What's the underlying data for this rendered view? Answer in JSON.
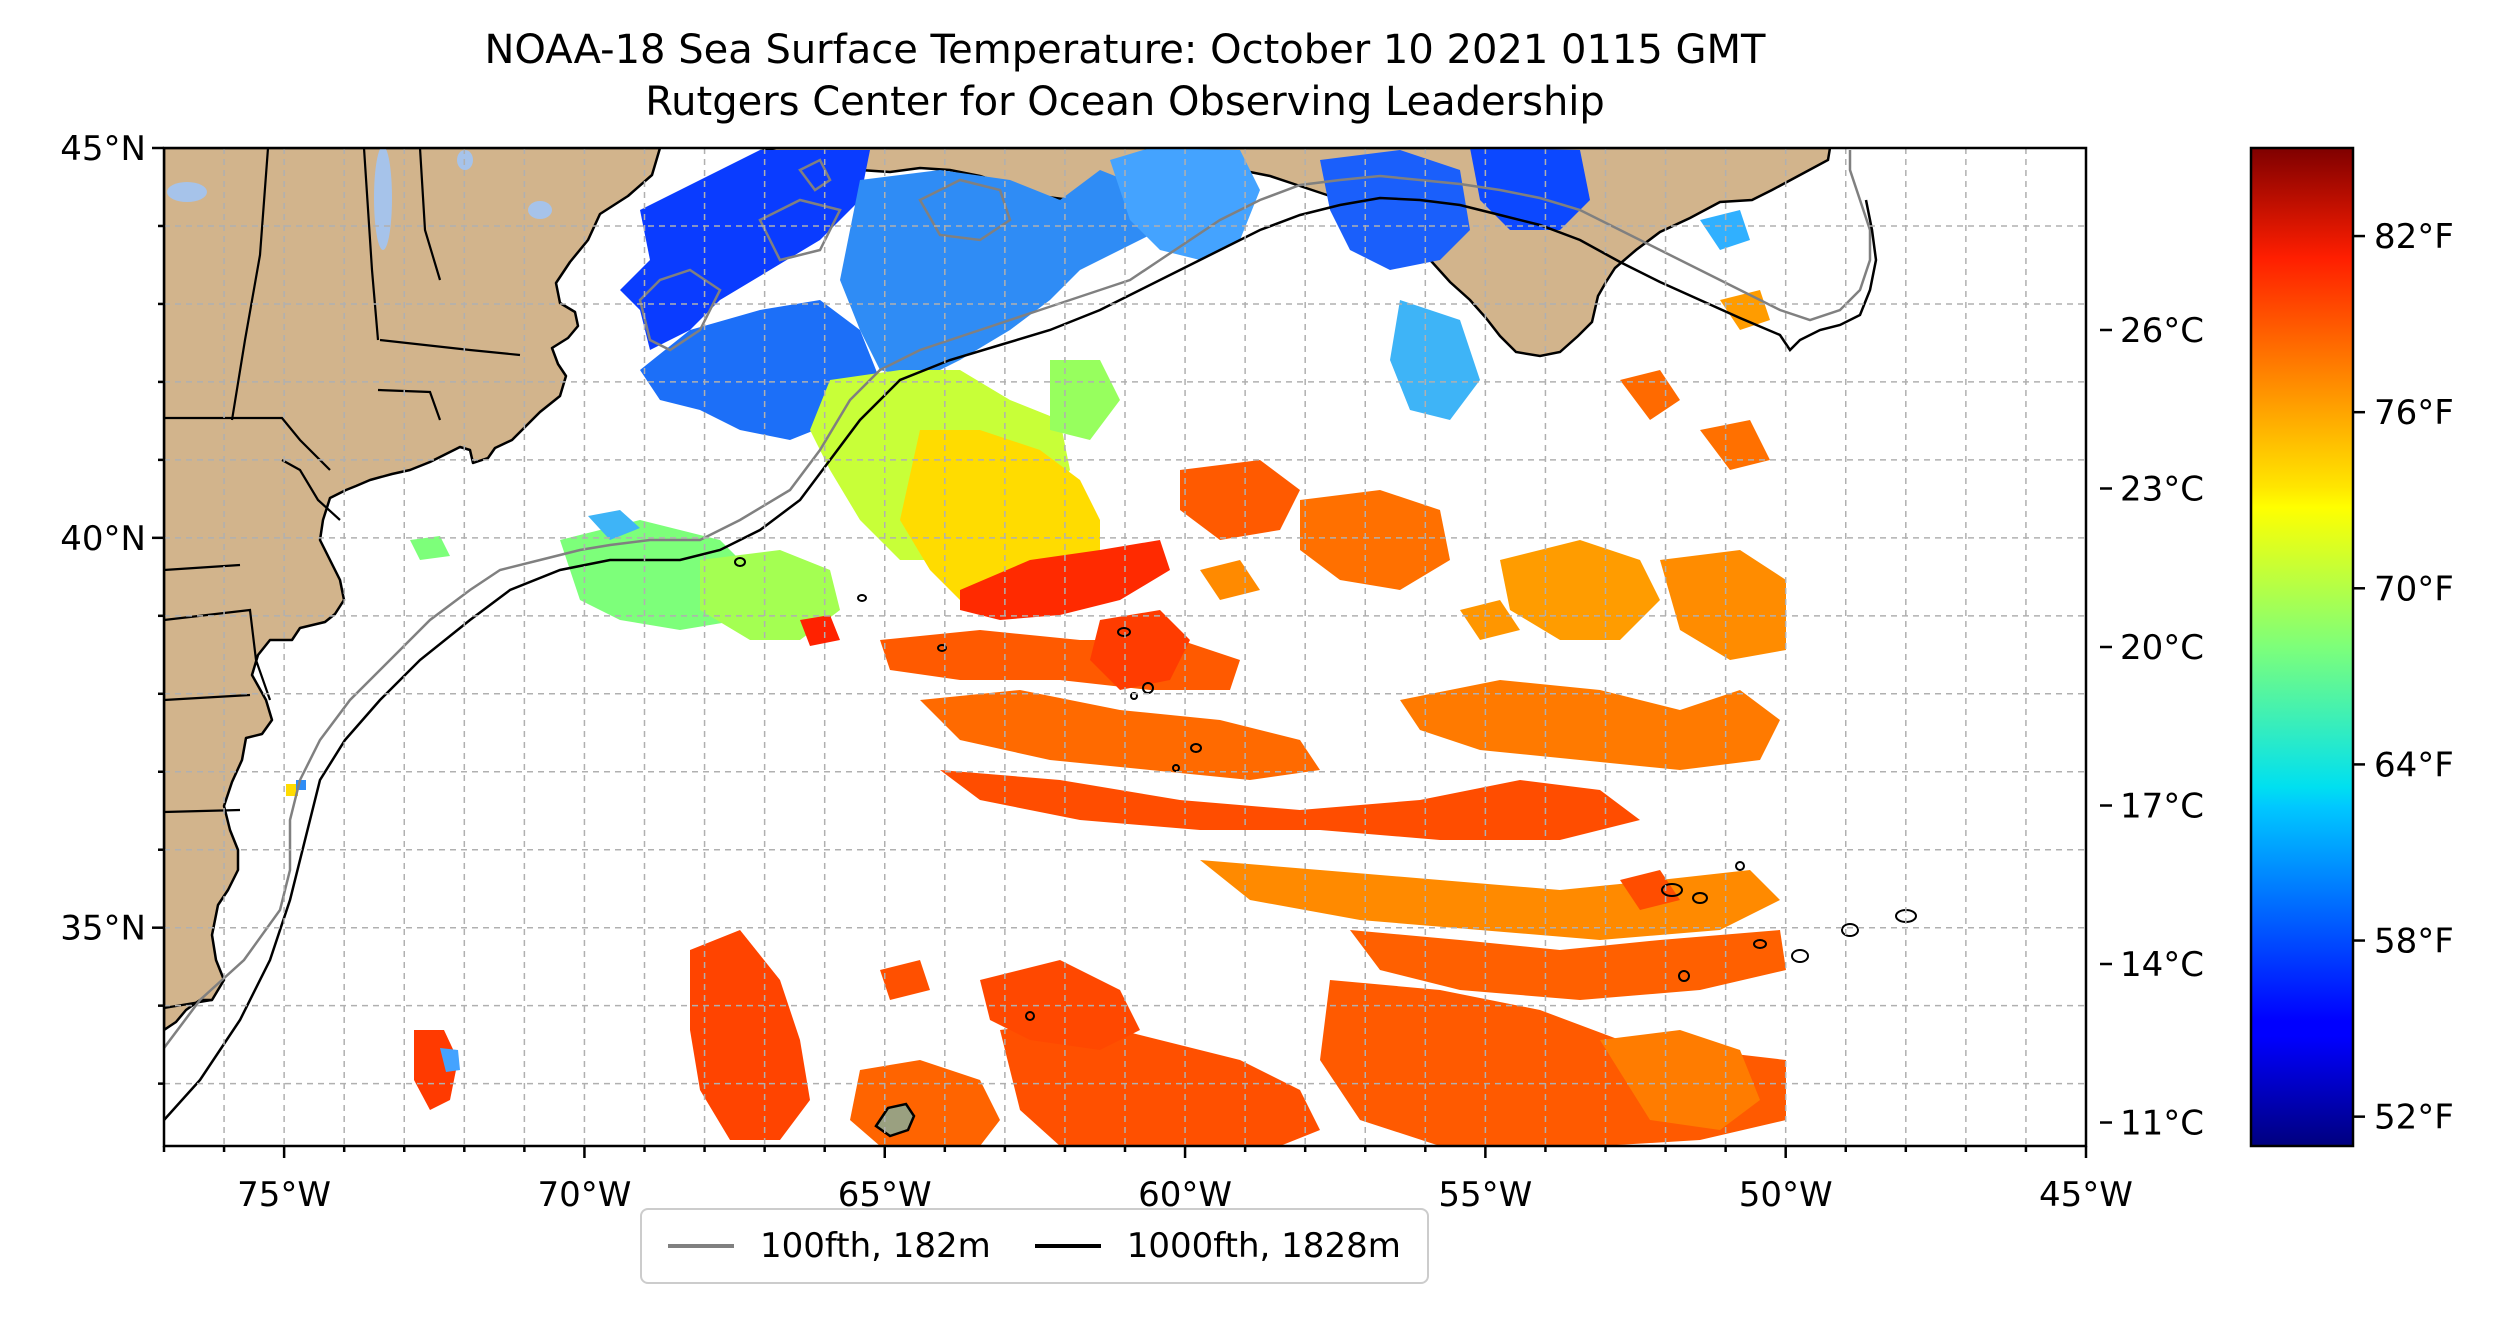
{
  "title": {
    "line1": "NOAA-18 Sea Surface Temperature: October 10 2021 0115 GMT",
    "line2": "Rutgers Center for Ocean Observing Leadership"
  },
  "map": {
    "projection": "equirectangular",
    "lon_range": [
      -77,
      -45
    ],
    "lat_range": [
      32.2,
      45
    ],
    "land_color": "#d2b48c",
    "lake_color": "#a6c3ea",
    "gridlines": true,
    "lon_ticks": [
      {
        "value": -75,
        "label": "75°W"
      },
      {
        "value": -70,
        "label": "70°W"
      },
      {
        "value": -65,
        "label": "65°W"
      },
      {
        "value": -60,
        "label": "60°W"
      },
      {
        "value": -55,
        "label": "55°W"
      },
      {
        "value": -50,
        "label": "50°W"
      },
      {
        "value": -45,
        "label": "45°W"
      }
    ],
    "lat_ticks": [
      {
        "value": 45,
        "label": "45°N"
      },
      {
        "value": 40,
        "label": "40°N"
      },
      {
        "value": 35,
        "label": "35°N"
      }
    ]
  },
  "colorbar": {
    "colormap": "jet",
    "range_f": [
      51,
      85
    ],
    "celsius_ticks": [
      {
        "value_c": 26,
        "label": "26°C"
      },
      {
        "value_c": 23,
        "label": "23°C"
      },
      {
        "value_c": 20,
        "label": "20°C"
      },
      {
        "value_c": 17,
        "label": "17°C"
      },
      {
        "value_c": 14,
        "label": "14°C"
      },
      {
        "value_c": 11,
        "label": "11°C"
      }
    ],
    "fahrenheit_ticks": [
      {
        "value_f": 82,
        "label": "82°F"
      },
      {
        "value_f": 76,
        "label": "76°F"
      },
      {
        "value_f": 70,
        "label": "70°F"
      },
      {
        "value_f": 64,
        "label": "64°F"
      },
      {
        "value_f": 58,
        "label": "58°F"
      },
      {
        "value_f": 52,
        "label": "52°F"
      }
    ]
  },
  "legend": {
    "placement": "bottom-center",
    "items": [
      {
        "label": "100fth, 182m",
        "color": "#808080"
      },
      {
        "label": "1000fth, 1828m",
        "color": "#000000"
      }
    ]
  }
}
